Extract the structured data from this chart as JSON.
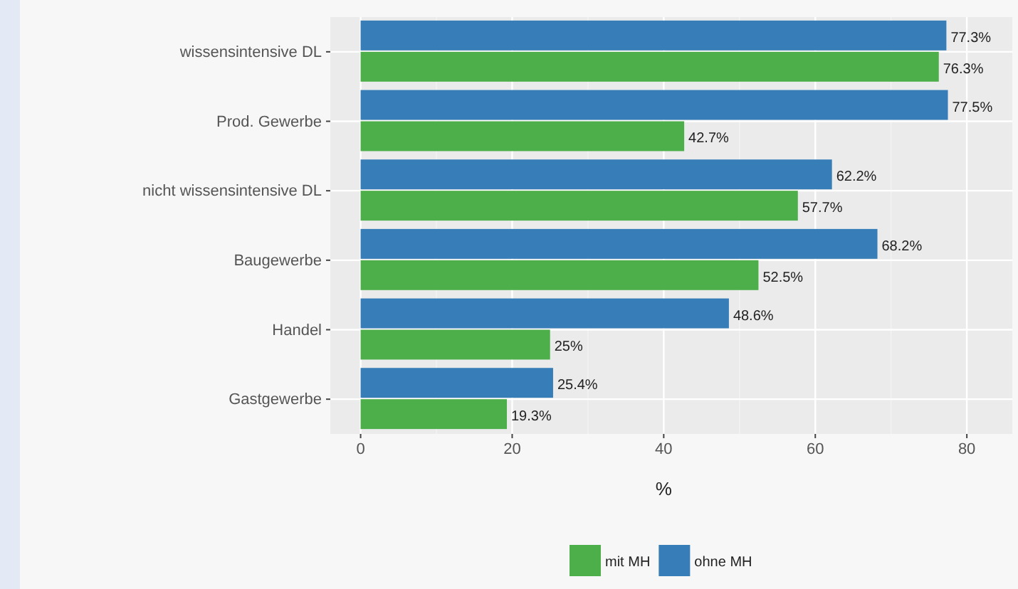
{
  "chart_data": {
    "type": "bar",
    "orientation": "horizontal",
    "xlabel": "%",
    "categories": [
      "wissensintensive DL",
      "Prod. Gewerbe",
      "nicht wissensintensive DL",
      "Baugewerbe",
      "Handel",
      "Gastgewerbe"
    ],
    "series": [
      {
        "name": "mit MH",
        "color": "#4daf4a",
        "values": [
          76.3,
          42.7,
          57.7,
          52.5,
          25,
          19.3
        ],
        "value_labels": [
          "76.3%",
          "42.7%",
          "57.7%",
          "52.5%",
          "25%",
          "19.3%"
        ]
      },
      {
        "name": "ohne MH",
        "color": "#377eb8",
        "values": [
          77.3,
          77.5,
          62.2,
          68.2,
          48.6,
          25.4
        ],
        "value_labels": [
          "77.3%",
          "77.5%",
          "62.2%",
          "68.2%",
          "48.6%",
          "25.4%"
        ]
      }
    ],
    "xlim": [
      -4,
      86
    ],
    "xticks": [
      0,
      20,
      40,
      60,
      80
    ],
    "grid": true,
    "legend": "bottom"
  }
}
